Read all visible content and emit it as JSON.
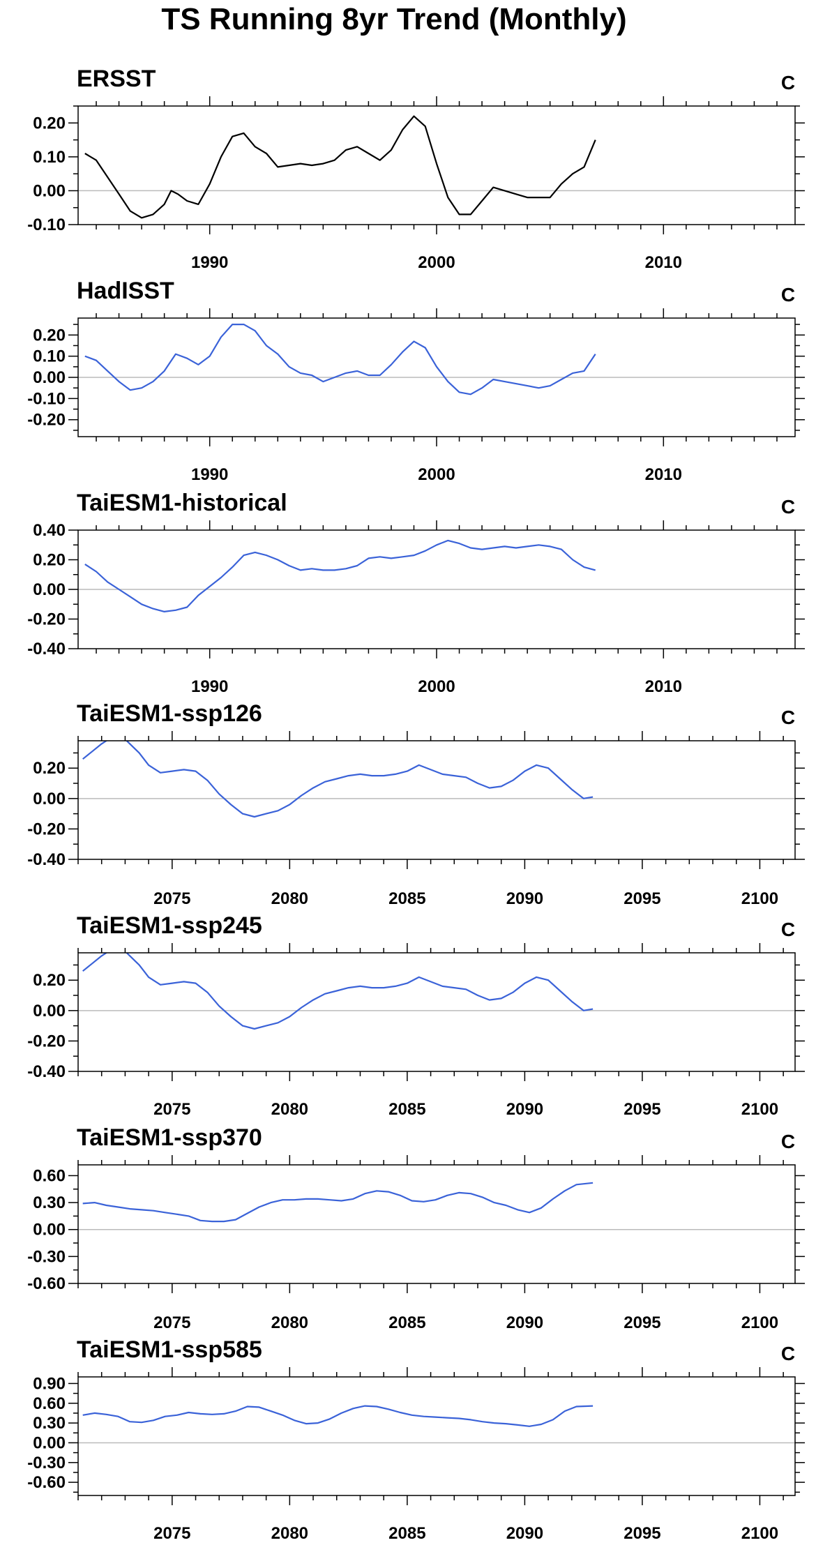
{
  "figure_title": "TS Running 8yr Trend (Monthly)",
  "colors": {
    "ersst": "#000000",
    "model": "#3a62d8",
    "zero_line": "#bbbbbb",
    "frame": "#000000"
  },
  "chart_data": [
    {
      "type": "line",
      "title": "ERSST",
      "units": "C",
      "xlim": [
        1984.2,
        2015.8
      ],
      "ylim": [
        -0.1,
        0.25
      ],
      "xticks": [
        1990,
        2000,
        2010
      ],
      "yticks": [
        -0.1,
        0.0,
        0.1,
        0.2
      ],
      "ytick_labels": [
        "-0.10",
        "0.00",
        "0.10",
        "0.20"
      ],
      "color": "#000000",
      "x": [
        1984.5,
        1985,
        1985.5,
        1986,
        1986.5,
        1987,
        1987.5,
        1988,
        1988.3,
        1988.6,
        1989,
        1989.5,
        1990,
        1990.5,
        1991,
        1991.5,
        1992,
        1992.5,
        1993,
        1993.5,
        1994,
        1994.5,
        1995,
        1995.5,
        1996,
        1996.5,
        1997,
        1997.5,
        1998,
        1998.5,
        1999,
        1999.5,
        2000,
        2000.5,
        2001,
        2001.5,
        2002,
        2002.5,
        2003,
        2003.5,
        2004,
        2004.5,
        2005,
        2005.5,
        2006,
        2006.5,
        2007
      ],
      "y": [
        0.11,
        0.09,
        0.04,
        -0.01,
        -0.06,
        -0.08,
        -0.07,
        -0.04,
        0.0,
        -0.01,
        -0.03,
        -0.04,
        0.02,
        0.1,
        0.16,
        0.17,
        0.13,
        0.11,
        0.07,
        0.075,
        0.08,
        0.075,
        0.08,
        0.09,
        0.12,
        0.13,
        0.11,
        0.09,
        0.12,
        0.18,
        0.22,
        0.19,
        0.08,
        -0.02,
        -0.07,
        -0.07,
        -0.03,
        0.01,
        0.0,
        -0.01,
        -0.02,
        -0.02,
        -0.02,
        0.02,
        0.05,
        0.07,
        0.15
      ]
    },
    {
      "type": "line",
      "title": "HadISST",
      "units": "C",
      "xlim": [
        1984.2,
        2015.8
      ],
      "ylim": [
        -0.28,
        0.28
      ],
      "xticks": [
        1990,
        2000,
        2010
      ],
      "yticks": [
        -0.2,
        -0.1,
        0.0,
        0.1,
        0.2
      ],
      "ytick_labels": [
        "-0.20",
        "-0.10",
        "0.00",
        "0.10",
        "0.20"
      ],
      "color": "#3a62d8",
      "x": [
        1984.5,
        1985,
        1985.5,
        1986,
        1986.5,
        1987,
        1987.5,
        1988,
        1988.5,
        1989,
        1989.5,
        1990,
        1990.5,
        1991,
        1991.5,
        1992,
        1992.5,
        1993,
        1993.5,
        1994,
        1994.5,
        1995,
        1995.5,
        1996,
        1996.5,
        1997,
        1997.5,
        1998,
        1998.5,
        1999,
        1999.5,
        2000,
        2000.5,
        2001,
        2001.5,
        2002,
        2002.5,
        2003,
        2003.5,
        2004,
        2004.5,
        2005,
        2005.5,
        2006,
        2006.5,
        2007
      ],
      "y": [
        0.1,
        0.08,
        0.03,
        -0.02,
        -0.06,
        -0.05,
        -0.02,
        0.03,
        0.11,
        0.09,
        0.06,
        0.1,
        0.19,
        0.25,
        0.25,
        0.22,
        0.15,
        0.11,
        0.05,
        0.02,
        0.01,
        -0.02,
        0.0,
        0.02,
        0.03,
        0.01,
        0.01,
        0.06,
        0.12,
        0.17,
        0.14,
        0.05,
        -0.02,
        -0.07,
        -0.08,
        -0.05,
        -0.01,
        -0.02,
        -0.03,
        -0.04,
        -0.05,
        -0.04,
        -0.01,
        0.02,
        0.03,
        0.11
      ]
    },
    {
      "type": "line",
      "title": "TaiESM1-historical",
      "units": "C",
      "xlim": [
        1984.2,
        2015.8
      ],
      "ylim": [
        -0.4,
        0.4
      ],
      "xticks": [
        1990,
        2000,
        2010
      ],
      "yticks": [
        -0.4,
        -0.2,
        0.0,
        0.2,
        0.4
      ],
      "ytick_labels": [
        "-0.40",
        "-0.20",
        "0.00",
        "0.20",
        "0.40"
      ],
      "color": "#3a62d8",
      "x": [
        1984.5,
        1985,
        1985.5,
        1986,
        1986.5,
        1987,
        1987.5,
        1988,
        1988.5,
        1989,
        1989.5,
        1990,
        1990.5,
        1991,
        1991.5,
        1992,
        1992.5,
        1993,
        1993.5,
        1994,
        1994.5,
        1995,
        1995.5,
        1996,
        1996.5,
        1997,
        1997.5,
        1998,
        1998.5,
        1999,
        1999.5,
        2000,
        2000.5,
        2001,
        2001.5,
        2002,
        2002.5,
        2003,
        2003.5,
        2004,
        2004.5,
        2005,
        2005.5,
        2006,
        2006.5,
        2007
      ],
      "y": [
        0.17,
        0.12,
        0.05,
        0.0,
        -0.05,
        -0.1,
        -0.13,
        -0.15,
        -0.14,
        -0.12,
        -0.04,
        0.02,
        0.08,
        0.15,
        0.23,
        0.25,
        0.23,
        0.2,
        0.16,
        0.13,
        0.14,
        0.13,
        0.13,
        0.14,
        0.16,
        0.21,
        0.22,
        0.21,
        0.22,
        0.23,
        0.26,
        0.3,
        0.33,
        0.31,
        0.28,
        0.27,
        0.28,
        0.29,
        0.28,
        0.29,
        0.3,
        0.29,
        0.27,
        0.2,
        0.15,
        0.13
      ]
    },
    {
      "type": "line",
      "title": "TaiESM1-ssp126",
      "units": "C",
      "xlim": [
        2071,
        2101.5
      ],
      "ylim": [
        -0.4,
        0.38
      ],
      "xticks": [
        2075,
        2080,
        2085,
        2090,
        2095,
        2100
      ],
      "yticks": [
        -0.4,
        -0.2,
        0.0,
        0.2
      ],
      "ytick_labels": [
        "-0.40",
        "-0.20",
        "0.00",
        "0.20"
      ],
      "color": "#3a62d8",
      "x": [
        2071.2,
        2071.6,
        2072,
        2072.4,
        2072.8,
        2073.2,
        2073.6,
        2074,
        2074.5,
        2075,
        2075.5,
        2076,
        2076.5,
        2077,
        2077.5,
        2078,
        2078.5,
        2079,
        2079.5,
        2080,
        2080.5,
        2081,
        2081.5,
        2082,
        2082.5,
        2083,
        2083.5,
        2084,
        2084.5,
        2085,
        2085.5,
        2086,
        2086.5,
        2087,
        2087.5,
        2088,
        2088.5,
        2089,
        2089.5,
        2090,
        2090.5,
        2091,
        2091.5,
        2092,
        2092.5,
        2092.9
      ],
      "y": [
        0.26,
        0.31,
        0.36,
        0.4,
        0.42,
        0.36,
        0.3,
        0.22,
        0.17,
        0.18,
        0.19,
        0.18,
        0.12,
        0.03,
        -0.04,
        -0.1,
        -0.12,
        -0.1,
        -0.08,
        -0.04,
        0.02,
        0.07,
        0.11,
        0.13,
        0.15,
        0.16,
        0.15,
        0.15,
        0.16,
        0.18,
        0.22,
        0.19,
        0.16,
        0.15,
        0.14,
        0.1,
        0.07,
        0.08,
        0.12,
        0.18,
        0.22,
        0.2,
        0.13,
        0.06,
        0.0,
        0.01
      ]
    },
    {
      "type": "line",
      "title": "TaiESM1-ssp245",
      "units": "C",
      "xlim": [
        2071,
        2101.5
      ],
      "ylim": [
        -0.4,
        0.38
      ],
      "xticks": [
        2075,
        2080,
        2085,
        2090,
        2095,
        2100
      ],
      "yticks": [
        -0.4,
        -0.2,
        0.0,
        0.2
      ],
      "ytick_labels": [
        "-0.40",
        "-0.20",
        "0.00",
        "0.20"
      ],
      "color": "#3a62d8",
      "x": [
        2071.2,
        2071.6,
        2072,
        2072.4,
        2072.8,
        2073.2,
        2073.6,
        2074,
        2074.5,
        2075,
        2075.5,
        2076,
        2076.5,
        2077,
        2077.5,
        2078,
        2078.5,
        2079,
        2079.5,
        2080,
        2080.5,
        2081,
        2081.5,
        2082,
        2082.5,
        2083,
        2083.5,
        2084,
        2084.5,
        2085,
        2085.5,
        2086,
        2086.5,
        2087,
        2087.5,
        2088,
        2088.5,
        2089,
        2089.5,
        2090,
        2090.5,
        2091,
        2091.5,
        2092,
        2092.5,
        2092.9
      ],
      "y": [
        0.26,
        0.31,
        0.36,
        0.4,
        0.42,
        0.36,
        0.3,
        0.22,
        0.17,
        0.18,
        0.19,
        0.18,
        0.12,
        0.03,
        -0.04,
        -0.1,
        -0.12,
        -0.1,
        -0.08,
        -0.04,
        0.02,
        0.07,
        0.11,
        0.13,
        0.15,
        0.16,
        0.15,
        0.15,
        0.16,
        0.18,
        0.22,
        0.19,
        0.16,
        0.15,
        0.14,
        0.1,
        0.07,
        0.08,
        0.12,
        0.18,
        0.22,
        0.2,
        0.13,
        0.06,
        0.0,
        0.01
      ]
    },
    {
      "type": "line",
      "title": "TaiESM1-ssp370",
      "units": "C",
      "xlim": [
        2071,
        2101.5
      ],
      "ylim": [
        -0.6,
        0.72
      ],
      "xticks": [
        2075,
        2080,
        2085,
        2090,
        2095,
        2100
      ],
      "yticks": [
        -0.6,
        -0.3,
        0.0,
        0.3,
        0.6
      ],
      "ytick_labels": [
        "-0.60",
        "-0.30",
        "0.00",
        "0.30",
        "0.60"
      ],
      "color": "#3a62d8",
      "x": [
        2071.2,
        2071.7,
        2072.2,
        2072.7,
        2073.2,
        2073.7,
        2074.2,
        2074.7,
        2075.2,
        2075.7,
        2076.2,
        2076.7,
        2077.2,
        2077.7,
        2078.2,
        2078.7,
        2079.2,
        2079.7,
        2080.2,
        2080.7,
        2081.2,
        2081.7,
        2082.2,
        2082.7,
        2083.2,
        2083.7,
        2084.2,
        2084.7,
        2085.2,
        2085.7,
        2086.2,
        2086.7,
        2087.2,
        2087.7,
        2088.2,
        2088.7,
        2089.2,
        2089.7,
        2090.2,
        2090.7,
        2091.2,
        2091.7,
        2092.2,
        2092.9
      ],
      "y": [
        0.29,
        0.3,
        0.27,
        0.25,
        0.23,
        0.22,
        0.21,
        0.19,
        0.17,
        0.15,
        0.1,
        0.09,
        0.09,
        0.11,
        0.18,
        0.25,
        0.3,
        0.33,
        0.33,
        0.34,
        0.34,
        0.33,
        0.32,
        0.34,
        0.4,
        0.43,
        0.42,
        0.38,
        0.32,
        0.31,
        0.33,
        0.38,
        0.41,
        0.4,
        0.36,
        0.3,
        0.27,
        0.22,
        0.19,
        0.24,
        0.34,
        0.43,
        0.5,
        0.52
      ]
    },
    {
      "type": "line",
      "title": "TaiESM1-ssp585",
      "units": "C",
      "xlim": [
        2071,
        2101.5
      ],
      "ylim": [
        -0.8,
        1.0
      ],
      "xticks": [
        2075,
        2080,
        2085,
        2090,
        2095,
        2100
      ],
      "yticks": [
        -0.6,
        -0.3,
        0.0,
        0.3,
        0.6,
        0.9
      ],
      "ytick_labels": [
        "-0.60",
        "-0.30",
        "0.00",
        "0.30",
        "0.60",
        "0.90"
      ],
      "color": "#3a62d8",
      "x": [
        2071.2,
        2071.7,
        2072.2,
        2072.7,
        2073.2,
        2073.7,
        2074.2,
        2074.7,
        2075.2,
        2075.7,
        2076.2,
        2076.7,
        2077.2,
        2077.7,
        2078.2,
        2078.7,
        2079.2,
        2079.7,
        2080.2,
        2080.7,
        2081.2,
        2081.7,
        2082.2,
        2082.7,
        2083.2,
        2083.7,
        2084.2,
        2084.7,
        2085.2,
        2085.7,
        2086.2,
        2086.7,
        2087.2,
        2087.7,
        2088.2,
        2088.7,
        2089.2,
        2089.7,
        2090.2,
        2090.7,
        2091.2,
        2091.7,
        2092.2,
        2092.9
      ],
      "y": [
        0.42,
        0.45,
        0.43,
        0.4,
        0.32,
        0.31,
        0.34,
        0.4,
        0.42,
        0.46,
        0.44,
        0.43,
        0.44,
        0.48,
        0.55,
        0.54,
        0.48,
        0.42,
        0.34,
        0.29,
        0.3,
        0.36,
        0.45,
        0.52,
        0.56,
        0.55,
        0.51,
        0.46,
        0.42,
        0.4,
        0.39,
        0.38,
        0.37,
        0.35,
        0.32,
        0.3,
        0.29,
        0.27,
        0.25,
        0.28,
        0.35,
        0.48,
        0.55,
        0.56
      ]
    }
  ]
}
